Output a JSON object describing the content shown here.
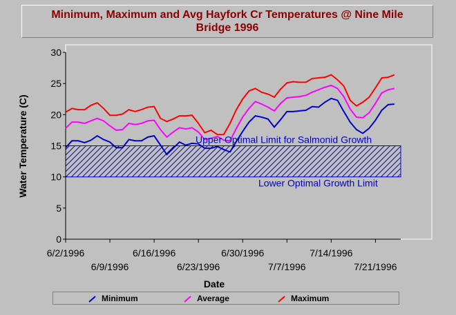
{
  "chart_data": {
    "type": "line",
    "title": "Minimum, Maximum and Avg Hayfork Cr Temperatures @ Nine Mile Bridge 1996",
    "xlabel": "Date",
    "ylabel": "Water Temperature (C)",
    "ylim": [
      0,
      30
    ],
    "yticks": [
      "0",
      "5",
      "10",
      "15",
      "20",
      "25",
      "30"
    ],
    "x_start": "6/2/1996",
    "x_end": "7/26/1996",
    "xtick_labels_row1": [
      "6/2/1996",
      "6/16/1996",
      "6/30/1996",
      "7/14/1996"
    ],
    "xtick_labels_row2": [
      "6/9/1996",
      "6/23/1996",
      "7/7/1996",
      "7/21/1996"
    ],
    "band": {
      "lower": 10,
      "upper": 15,
      "pattern": "diagonal-hatch",
      "color": "#0000cc"
    },
    "annotations": [
      {
        "text": "Upper Optimal Limit for Salmonid Growth",
        "value": 15
      },
      {
        "text": "Lower Optimal Growth Limit",
        "value": 10
      }
    ],
    "legend_position": "bottom",
    "series": [
      {
        "name": "Minimum",
        "color": "#0000cc",
        "values": [
          14.7,
          15.8,
          15.8,
          15.5,
          15.9,
          16.6,
          16.0,
          15.6,
          14.7,
          14.7,
          16.0,
          15.8,
          15.8,
          16.4,
          16.6,
          15.1,
          13.6,
          14.6,
          15.6,
          15.1,
          15.4,
          15.3,
          14.6,
          14.6,
          14.9,
          14.4,
          14.0,
          15.7,
          17.3,
          18.8,
          19.8,
          19.6,
          19.3,
          18.0,
          19.2,
          20.5,
          20.5,
          20.6,
          20.7,
          21.3,
          21.2,
          22.0,
          22.6,
          22.3,
          20.5,
          18.8,
          17.6,
          17.0,
          17.8,
          19.1,
          20.7,
          21.6,
          21.7
        ]
      },
      {
        "name": "Average",
        "color": "#ff00ff",
        "values": [
          17.8,
          18.8,
          18.8,
          18.6,
          19.0,
          19.4,
          19.0,
          18.2,
          17.5,
          17.6,
          18.6,
          18.4,
          18.6,
          19.0,
          19.1,
          17.6,
          16.4,
          17.2,
          17.9,
          17.7,
          17.9,
          17.2,
          16.0,
          16.2,
          16.5,
          15.9,
          15.8,
          17.8,
          19.6,
          21.0,
          22.1,
          21.7,
          21.2,
          20.6,
          21.8,
          22.7,
          22.8,
          22.9,
          23.1,
          23.6,
          24.0,
          24.4,
          24.7,
          24.2,
          22.9,
          20.9,
          19.6,
          19.5,
          20.3,
          21.8,
          23.5,
          24.0,
          24.2
        ]
      },
      {
        "name": "Maximum",
        "color": "#ff0000",
        "values": [
          20.4,
          21.0,
          20.8,
          20.8,
          21.5,
          21.9,
          21.0,
          19.9,
          19.9,
          20.1,
          20.8,
          20.5,
          20.8,
          21.2,
          21.3,
          19.4,
          18.9,
          19.3,
          19.8,
          19.8,
          19.9,
          18.6,
          17.1,
          17.5,
          16.8,
          16.8,
          18.6,
          20.8,
          22.5,
          23.8,
          24.2,
          23.6,
          23.3,
          22.8,
          24.1,
          25.1,
          25.3,
          25.2,
          25.2,
          25.8,
          25.9,
          26.0,
          26.4,
          25.6,
          24.6,
          22.3,
          21.4,
          22.0,
          22.8,
          24.3,
          25.9,
          26.0,
          26.4
        ]
      }
    ]
  }
}
